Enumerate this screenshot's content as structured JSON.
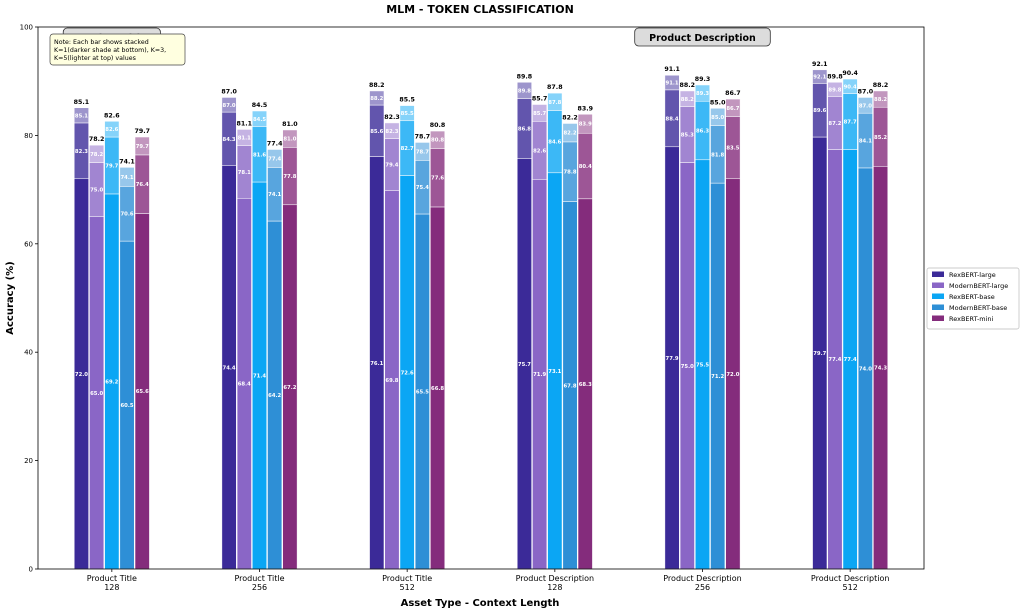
{
  "chart_data": {
    "type": "bar",
    "stacked": true,
    "title": "MLM - TOKEN CLASSIFICATION",
    "xlabel": "Asset Type - Context Length",
    "ylabel": "Accuracy (%)",
    "ylim": [
      0,
      100
    ],
    "yticks": [
      "0",
      "20",
      "40",
      "60",
      "80",
      "100"
    ],
    "grid": false,
    "legend_position": "right",
    "note": [
      "Note: Each bar shows stacked",
      "K=1(darker shade at bottom), K=3,",
      "K=5(lighter at top) values"
    ],
    "section_labels": [
      {
        "text": "Product Title",
        "group": 0
      },
      {
        "text": "Product Description",
        "group": 4
      }
    ],
    "categories": [
      [
        "Product Title",
        "128"
      ],
      [
        "Product Title",
        "256"
      ],
      [
        "Product Title",
        "512"
      ],
      [
        "Product Description",
        "128"
      ],
      [
        "Product Description",
        "256"
      ],
      [
        "Product Description",
        "512"
      ]
    ],
    "series": [
      {
        "name": "RexBERT-large",
        "color": "#3b2a98",
        "k1": [
          72.0,
          74.4,
          76.1,
          75.7,
          77.9,
          79.7
        ],
        "k3": [
          82.3,
          84.3,
          85.6,
          86.8,
          88.4,
          89.6
        ],
        "k5": [
          85.1,
          87.0,
          88.2,
          89.8,
          91.1,
          92.1
        ]
      },
      {
        "name": "ModernBERT-large",
        "color": "#8a66c6",
        "k1": [
          65.0,
          68.4,
          69.8,
          71.9,
          75.0,
          77.4
        ],
        "k3": [
          75.0,
          78.1,
          79.4,
          82.6,
          85.3,
          87.2
        ],
        "k5": [
          78.2,
          81.1,
          82.3,
          85.7,
          88.2,
          89.8
        ]
      },
      {
        "name": "RexBERT-base",
        "color": "#0ba6f4",
        "k1": [
          69.2,
          71.4,
          72.6,
          73.1,
          75.5,
          77.4
        ],
        "k3": [
          79.7,
          81.6,
          82.7,
          84.6,
          86.3,
          87.7
        ],
        "k5": [
          82.6,
          84.5,
          85.5,
          87.8,
          89.3,
          90.4
        ]
      },
      {
        "name": "ModernBERT-base",
        "color": "#2e8fd6",
        "k1": [
          60.5,
          64.2,
          65.5,
          67.8,
          71.2,
          74.0
        ],
        "k3": [
          70.6,
          74.1,
          75.4,
          78.8,
          81.8,
          84.1
        ],
        "k5": [
          74.1,
          77.4,
          78.7,
          82.2,
          85.0,
          87.0
        ]
      },
      {
        "name": "RexBERT-mini",
        "color": "#842c7c",
        "k1": [
          65.6,
          67.2,
          66.8,
          68.3,
          72.0,
          74.3
        ],
        "k3": [
          76.4,
          77.8,
          77.6,
          80.4,
          83.5,
          85.2
        ],
        "k5": [
          79.7,
          81.0,
          80.8,
          83.9,
          86.7,
          88.2
        ]
      }
    ]
  }
}
